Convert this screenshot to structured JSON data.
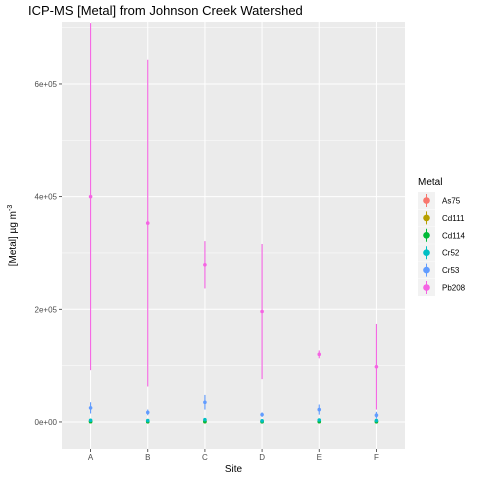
{
  "chart_data": {
    "type": "scatter",
    "title": "ICP-MS [Metal] from Johnson Creek Watershed",
    "xlabel": "Site",
    "ylabel": "[Metal] µg m",
    "ylabel_superscript": "-3",
    "categories": [
      "A",
      "B",
      "C",
      "D",
      "E",
      "F"
    ],
    "ylim": [
      -48000,
      710000
    ],
    "yticks": [
      0,
      200000,
      400000,
      600000
    ],
    "ytick_labels": [
      "0e+00",
      "2e+05",
      "4e+05",
      "6e+05"
    ],
    "grid": true,
    "legend": {
      "title": "Metal",
      "position": "right"
    },
    "series": [
      {
        "name": "As75",
        "color": "#f8766d",
        "values": [
          1500,
          1200,
          1800,
          1000,
          1500,
          1200
        ],
        "lower": [
          500,
          400,
          700,
          300,
          500,
          400
        ],
        "upper": [
          2500,
          2000,
          2900,
          1700,
          2500,
          2000
        ]
      },
      {
        "name": "Cd111",
        "color": "#b79f00",
        "values": [
          400,
          350,
          450,
          300,
          400,
          350
        ],
        "lower": [
          200,
          150,
          200,
          100,
          200,
          150
        ],
        "upper": [
          600,
          550,
          700,
          500,
          600,
          550
        ]
      },
      {
        "name": "Cd114",
        "color": "#00ba38",
        "values": [
          600,
          500,
          700,
          450,
          600,
          500
        ],
        "lower": [
          300,
          250,
          350,
          200,
          300,
          250
        ],
        "upper": [
          900,
          750,
          1050,
          700,
          900,
          750
        ]
      },
      {
        "name": "Cr52",
        "color": "#00bfc4",
        "values": [
          3000,
          2500,
          4000,
          2000,
          3500,
          2500
        ],
        "lower": [
          1500,
          1200,
          2000,
          1000,
          1700,
          1200
        ],
        "upper": [
          4500,
          3800,
          6000,
          3000,
          5300,
          3800
        ]
      },
      {
        "name": "Cr53",
        "color": "#619cff",
        "values": [
          25000,
          17000,
          35000,
          13000,
          22000,
          12000
        ],
        "lower": [
          15000,
          12000,
          22000,
          9000,
          13000,
          6000
        ],
        "upper": [
          35000,
          22000,
          48000,
          17000,
          31000,
          18000
        ]
      },
      {
        "name": "Pb208",
        "color": "#f564e3",
        "values": [
          400000,
          353000,
          279000,
          196000,
          120000,
          98000
        ],
        "lower": [
          92000,
          63000,
          237000,
          76000,
          113000,
          22000
        ],
        "upper": [
          708000,
          643000,
          321000,
          316000,
          127000,
          174000
        ]
      }
    ]
  }
}
